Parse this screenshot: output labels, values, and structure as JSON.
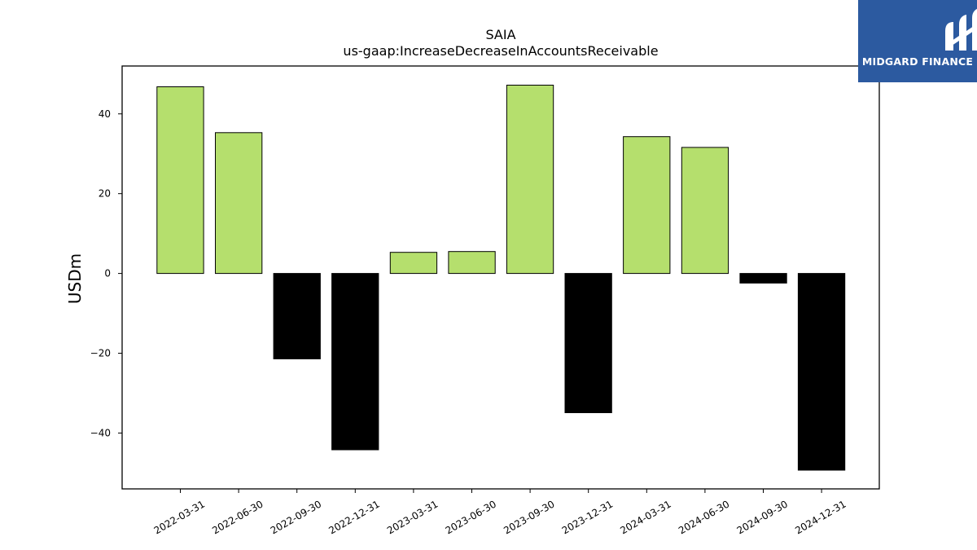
{
  "chart_data": {
    "type": "bar",
    "title": "SAIA",
    "subtitle": "us-gaap:IncreaseDecreaseInAccountsReceivable",
    "ylabel": "USDm",
    "xlabel": "",
    "categories": [
      "2022-03-31",
      "2022-06-30",
      "2022-09-30",
      "2022-12-31",
      "2023-03-31",
      "2023-06-30",
      "2023-09-30",
      "2023-12-31",
      "2024-03-31",
      "2024-06-30",
      "2024-09-30",
      "2024-12-31"
    ],
    "values": [
      46.8,
      35.3,
      -21.4,
      -44.2,
      5.3,
      5.5,
      47.2,
      -34.9,
      34.3,
      31.6,
      -2.4,
      -49.3
    ],
    "ylim": [
      -54,
      52
    ],
    "yticks": [
      -40,
      -20,
      0,
      20,
      40
    ],
    "colors": {
      "positive": "#b5df6d",
      "negative": "#000000"
    },
    "grid": false
  },
  "brand": {
    "name": "MIDGARD FINANCE",
    "color": "#2c5aa0"
  }
}
